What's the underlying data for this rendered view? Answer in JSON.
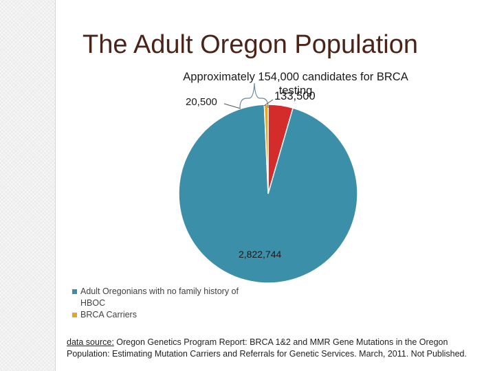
{
  "slide": {
    "title": "The Adult Oregon Population"
  },
  "chart_data": {
    "type": "pie",
    "title": "Approximately 154,000 candidates for BRCA testing",
    "slices": [
      {
        "name": "Adult Oregonians with no family history of HBOC",
        "value": 2822744,
        "label": "2,822,744",
        "color": "#3b8fa9"
      },
      {
        "name": "BRCA Carriers",
        "value": 20500,
        "label": "20,500",
        "color": "#e6a528"
      },
      {
        "name": "",
        "value": 133500,
        "label": "133,500",
        "color": "#d42c2a"
      }
    ]
  },
  "legend": {
    "items": [
      {
        "label": "Adult Oregonians with no family history of HBOC",
        "color": "#3b8fa9"
      },
      {
        "label": "BRCA Carriers",
        "color": "#e6a528"
      }
    ]
  },
  "source": {
    "label": "data source:",
    "text": " Oregon Genetics Program Report: BRCA 1&2 and MMR Gene Mutations in the Oregon Population: Estimating Mutation Carriers and Referrals for Genetic Services. March, 2011. Not Published."
  }
}
